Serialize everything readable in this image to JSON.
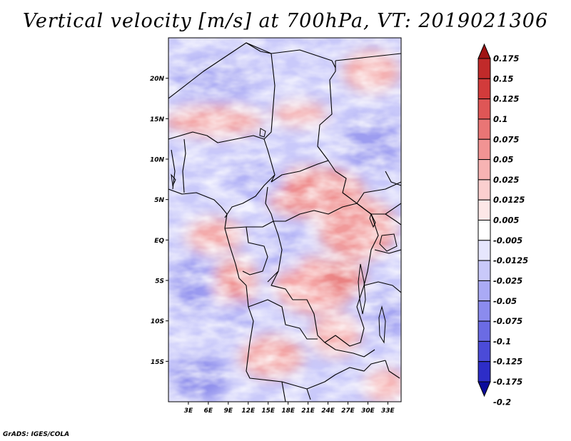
{
  "title": "Vertical velocity [m/s] at 700hPa, VT: 2019021306",
  "footer": "GrADS: IGES/COLA",
  "map": {
    "lon_range": [
      0,
      35
    ],
    "lat_range": [
      -20,
      25
    ],
    "lat_labels": [
      {
        "lat": 20,
        "label": "20N"
      },
      {
        "lat": 15,
        "label": "15N"
      },
      {
        "lat": 10,
        "label": "10N"
      },
      {
        "lat": 5,
        "label": "5N"
      },
      {
        "lat": 0,
        "label": "EQ"
      },
      {
        "lat": -5,
        "label": "5S"
      },
      {
        "lat": -10,
        "label": "10S"
      },
      {
        "lat": -15,
        "label": "15S"
      }
    ],
    "lon_labels": [
      {
        "lon": 3,
        "label": "3E"
      },
      {
        "lon": 6,
        "label": "6E"
      },
      {
        "lon": 9,
        "label": "9E"
      },
      {
        "lon": 12,
        "label": "12E"
      },
      {
        "lon": 15,
        "label": "15E"
      },
      {
        "lon": 18,
        "label": "18E"
      },
      {
        "lon": 21,
        "label": "21E"
      },
      {
        "lon": 24,
        "label": "24E"
      },
      {
        "lon": 27,
        "label": "27E"
      },
      {
        "lon": 30,
        "label": "30E"
      },
      {
        "lon": 33,
        "label": "33E"
      }
    ]
  },
  "colorbar": {
    "levels": [
      {
        "label": "0.175",
        "color": "#b01c1c"
      },
      {
        "label": "0.15",
        "color": "#c12a2a"
      },
      {
        "label": "0.125",
        "color": "#d23b3b"
      },
      {
        "label": "0.1",
        "color": "#df5656"
      },
      {
        "label": "0.075",
        "color": "#e97575"
      },
      {
        "label": "0.05",
        "color": "#f19393"
      },
      {
        "label": "0.025",
        "color": "#f7b3b3"
      },
      {
        "label": "0.0125",
        "color": "#fbcfcf"
      },
      {
        "label": "0.005",
        "color": "#fde7e7"
      },
      {
        "label": "-0.005",
        "color": "#ffffff"
      },
      {
        "label": "-0.0125",
        "color": "#e6e6fd"
      },
      {
        "label": "-0.025",
        "color": "#c9c9fa"
      },
      {
        "label": "-0.05",
        "color": "#aaaaf5"
      },
      {
        "label": "-0.075",
        "color": "#8b8bee"
      },
      {
        "label": "-0.1",
        "color": "#6b6be4"
      },
      {
        "label": "-0.125",
        "color": "#4b4bd8"
      },
      {
        "label": "-0.175",
        "color": "#2d2dc8"
      },
      {
        "label": "-0.2",
        "color": "#1414b0"
      }
    ],
    "top_arrow_color": "#a01414",
    "bottom_arrow_color": "#0a0a9c"
  }
}
